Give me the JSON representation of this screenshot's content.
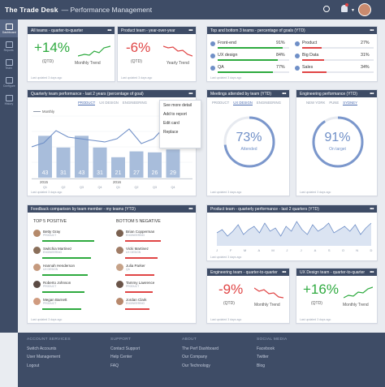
{
  "app": {
    "brand": "The Trade Desk",
    "section": "— Performance Management"
  },
  "nav": [
    {
      "label": "Dashboard"
    },
    {
      "label": "Reports"
    },
    {
      "label": "Team"
    },
    {
      "label": "Configure"
    },
    {
      "label": "History"
    }
  ],
  "card1": {
    "title": "All teams - quarter-to-quarter",
    "value": "+14%",
    "qtd": "(QTD)",
    "trend": "Monthly Trend",
    "updated": "Last updated 3 days ago"
  },
  "card2": {
    "title": "Product team - year-over-year",
    "value": "-6%",
    "qtd": "(QTD)",
    "trend": "Yearly Trend",
    "updated": "Last updated 3 days ago"
  },
  "card3": {
    "title": "Top and bottom 3 teams - percentage of goals (YTD)",
    "updated": "Last updated 3 days ago",
    "left": [
      {
        "name": "Front-end",
        "pct": "91%",
        "fill": 0.91
      },
      {
        "name": "UX design",
        "pct": "84%",
        "fill": 0.84
      },
      {
        "name": "QA",
        "pct": "77%",
        "fill": 0.77
      }
    ],
    "right": [
      {
        "name": "Product",
        "pct": "27%",
        "fill": 0.27
      },
      {
        "name": "Big Data",
        "pct": "31%",
        "fill": 0.31
      },
      {
        "name": "Sales",
        "pct": "34%",
        "fill": 0.34
      }
    ]
  },
  "card4": {
    "title": "Quarterly team performance - last 2 years (percentage of goal)",
    "tabs": [
      "PRODUCT",
      "UX DESIGN",
      "ENGINEERING"
    ],
    "legend": "Monthly",
    "updated": "Last updated 3 days ago",
    "menu": [
      "See more detail",
      "Add to report",
      "Edit card",
      "Replace"
    ]
  },
  "chart_data": {
    "type": "bar",
    "categories": [
      "Q1",
      "Q2",
      "Q3",
      "Q4",
      "Q1",
      "Q2",
      "Q3",
      "Q4"
    ],
    "year_labels": [
      "2015",
      "2016"
    ],
    "values": [
      43,
      31,
      43,
      31,
      21,
      27,
      26,
      29
    ]
  },
  "card5": {
    "title": "Meetings attended by team (YTD)",
    "tabs": [
      "PRODUCT",
      "UX DESIGN",
      "ENGINEERING"
    ],
    "value": "73%",
    "label": "Attended",
    "fill": 0.73,
    "updated": "Last updated 3 days ago"
  },
  "card6": {
    "title": "Engineering performance (YTD)",
    "tabs": [
      "NEW YORK",
      "PUNE",
      "SYDNEY"
    ],
    "value": "91%",
    "label": "On target",
    "fill": 0.91,
    "updated": "Last updated 3 days ago"
  },
  "card7": {
    "title": "Feedback comparison by team member - my teams (YTD)",
    "top_label": "TOP 5 POSITIVE",
    "bottom_label": "BOTTOM 5 NEGATIVE",
    "updated": "Last updated 3 days ago",
    "top": [
      {
        "name": "Betty Gray",
        "role": "PRODUCT",
        "fill": 0.8
      },
      {
        "name": "Switchia Martinez",
        "role": "ENGINEERING",
        "fill": 0.75
      },
      {
        "name": "Hannah Henderson",
        "role": "UX DESIGN",
        "fill": 0.7
      },
      {
        "name": "Roberto Johnson",
        "role": "PRODUCT",
        "fill": 0.65
      },
      {
        "name": "Megan Barnett",
        "role": "PRODUCT",
        "fill": 0.6
      }
    ],
    "bottom": [
      {
        "name": "Brian Copperman",
        "role": "ENGINEERING",
        "fill": 0.55
      },
      {
        "name": "Vicki Martinez",
        "role": "UX DESIGN",
        "fill": 0.5
      },
      {
        "name": "Julia Parker",
        "role": "QA",
        "fill": 0.45
      },
      {
        "name": "Tammy Lawrence",
        "role": "PRODUCT",
        "fill": 0.42
      },
      {
        "name": "Jordan Clark",
        "role": "ENGINEERING",
        "fill": 0.38
      }
    ]
  },
  "card8": {
    "title": "Product team - quarterly performance - last 2 quarters (YTD)",
    "xlabels": [
      "J",
      "F",
      "M",
      "A",
      "M",
      "J",
      "J",
      "A",
      "S",
      "O",
      "N",
      "D"
    ],
    "updated": "Last updated 3 days ago"
  },
  "card9": {
    "title": "Engineering team - quarter-to-quarter",
    "value": "-9%",
    "qtd": "(QTD)",
    "trend": "Monthly Trend",
    "updated": "Last updated 3 days ago"
  },
  "card10": {
    "title": "UX Design team - quarter-to-quarter",
    "value": "+16%",
    "qtd": "(QTD)",
    "trend": "Monthly Trend",
    "updated": "Last updated 3 days ago"
  },
  "footer": {
    "cols": [
      {
        "title": "ACCOUNT SERVICES",
        "items": [
          "Switch Accounts",
          "User Management",
          "Logout"
        ]
      },
      {
        "title": "SUPPORT",
        "items": [
          "Contact Support",
          "Help Center",
          "FAQ"
        ]
      },
      {
        "title": "ABOUT",
        "items": [
          "The Perf Dashboard",
          "Our Company",
          "Our Technology"
        ]
      },
      {
        "title": "SOCIAL MEDIA",
        "items": [
          "Facebook",
          "Twitter",
          "Blog"
        ]
      }
    ]
  },
  "colors": {
    "navy": "#3e4c66",
    "blue": "#6f8fc7",
    "green": "#2eaa3f",
    "red": "#e04545"
  }
}
